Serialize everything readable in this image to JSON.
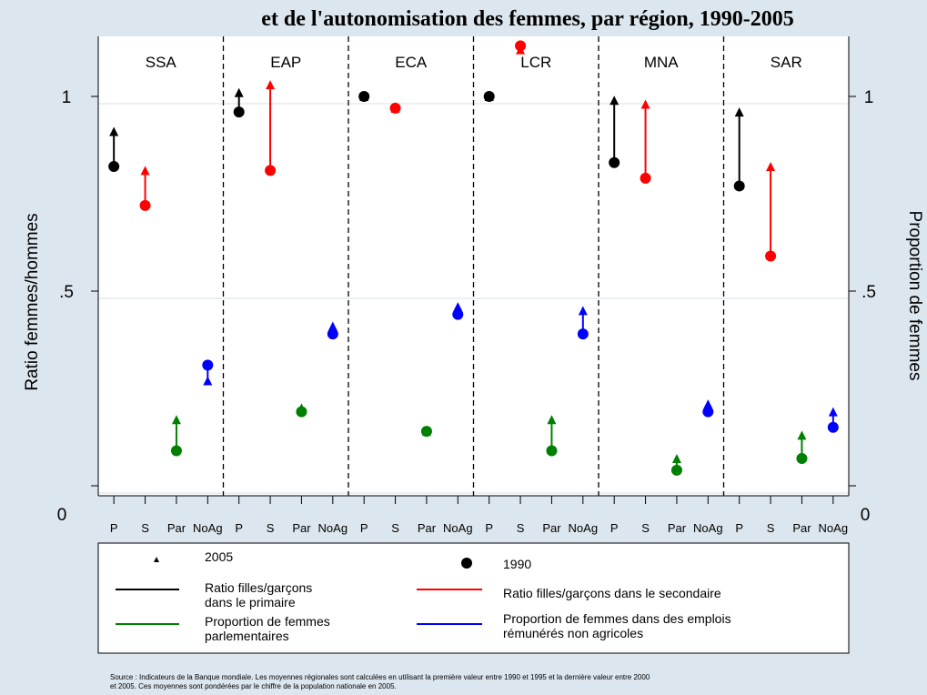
{
  "chart_data": {
    "type": "scatter",
    "title": "et de l'autonomisation des femmes, par région, 1990-2005",
    "ylabel": "Ratio femmes/hommes",
    "ylabel_right": "Proportion de femmes",
    "ylim": [
      0,
      1.2
    ],
    "y_ticks": [
      {
        "value": 0,
        "label": "0"
      },
      {
        "value": 0.5,
        "label": ".5"
      },
      {
        "value": 1,
        "label": "1"
      }
    ],
    "regions": [
      "SSA",
      "EAP",
      "ECA",
      "LCR",
      "MNA",
      "SAR"
    ],
    "categories": [
      "P",
      "S",
      "Par",
      "NoAg"
    ],
    "grid": true,
    "series": [
      {
        "key": "P",
        "color": "#000000",
        "v1990": [
          0.82,
          0.96,
          1.0,
          1.0,
          0.83,
          0.77
        ],
        "v2005": [
          0.91,
          1.01,
          1.0,
          1.0,
          0.99,
          0.96
        ]
      },
      {
        "key": "S",
        "color": "#ff0000",
        "v1990": [
          0.72,
          0.81,
          0.97,
          1.13,
          0.79,
          0.59
        ],
        "v2005": [
          0.81,
          1.03,
          0.97,
          1.12,
          0.98,
          0.82
        ]
      },
      {
        "key": "Par",
        "color": "#008000",
        "v1990": [
          0.09,
          0.19,
          0.14,
          0.09,
          0.04,
          0.07
        ],
        "v2005": [
          0.17,
          0.2,
          0.14,
          0.17,
          0.07,
          0.13
        ]
      },
      {
        "key": "NoAg",
        "color": "#0000ff",
        "v1990": [
          0.31,
          0.39,
          0.44,
          0.39,
          0.19,
          0.15
        ],
        "v2005": [
          0.27,
          0.41,
          0.46,
          0.45,
          0.21,
          0.19
        ]
      }
    ],
    "legend": {
      "placement": "bottom",
      "marker_2005": "2005",
      "marker_1990": "1990",
      "primary": [
        "Ratio filles/garçons",
        "dans le primaire"
      ],
      "secondary": "Ratio filles/garçons dans le secondaire",
      "parliament": [
        "Proportion de femmes",
        "parlementaires"
      ],
      "nonag": [
        "Proportion de femmes dans des emplois",
        "rémunérés non agricoles"
      ]
    },
    "source_note": [
      "Source : Indicateurs de la Banque mondiale. Les moyennes régionales sont calculées en utilisant la première valeur entre 1990 et 1995 et la dernière valeur entre 2000",
      "et 2005. Ces moyennes sont pondérées par le chiffre de la population nationale en 2005."
    ]
  }
}
